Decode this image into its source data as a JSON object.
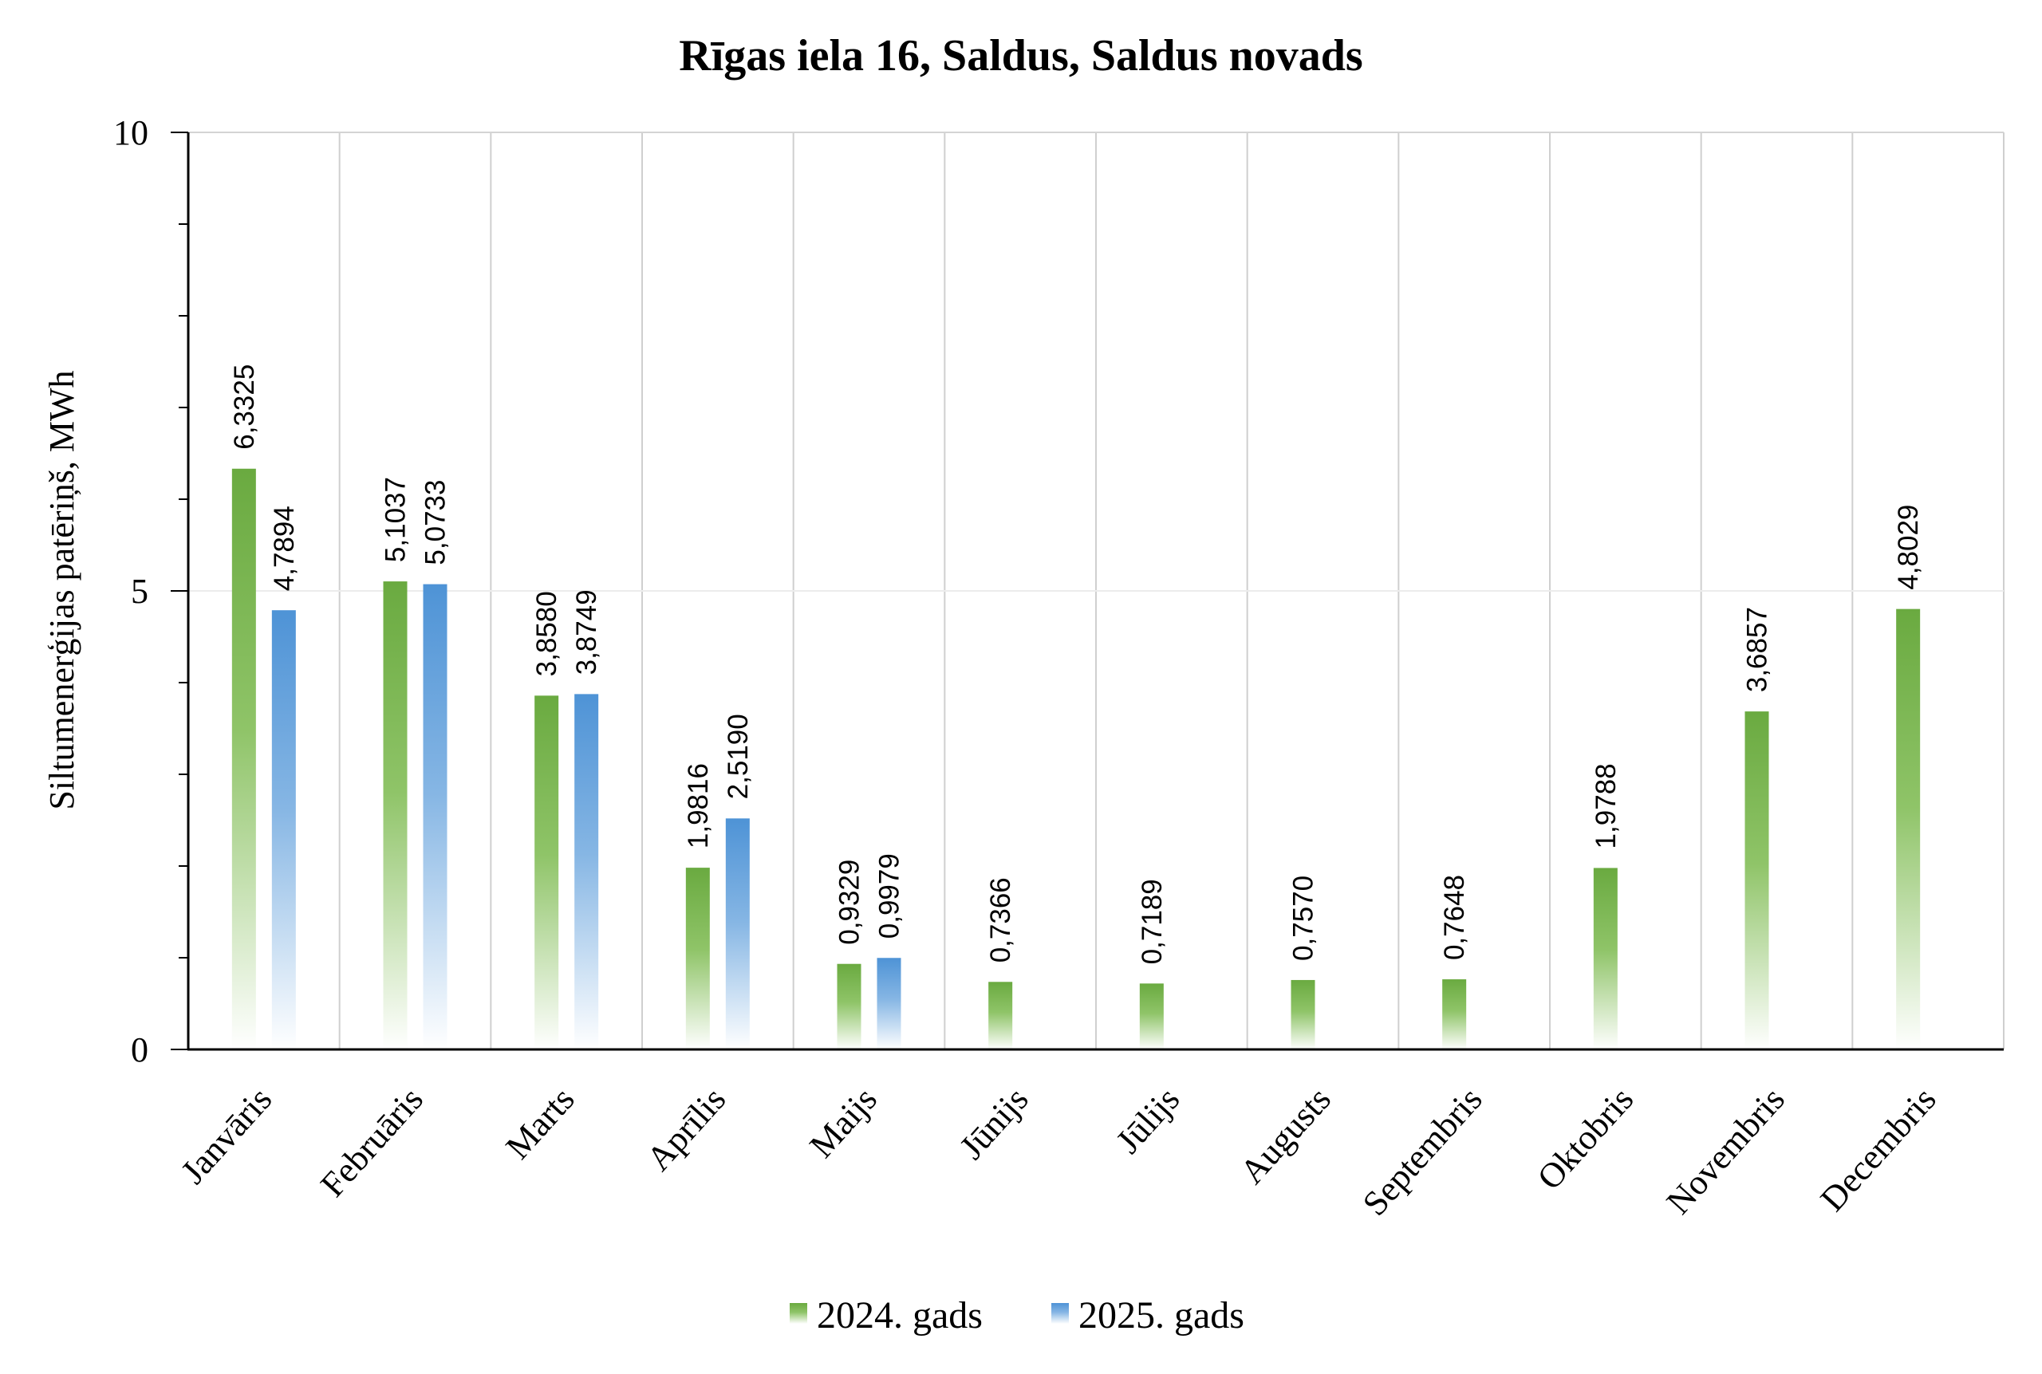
{
  "chart_data": {
    "type": "bar",
    "title": "Rīgas iela 16, Saldus, Saldus novads",
    "ylabel": "Siltumenerģijas patēriņš, MWh",
    "xlabel": "",
    "ylim": [
      0,
      10
    ],
    "yticks": [
      "0",
      "5",
      "10"
    ],
    "categories": [
      "Janvāris",
      "Februāris",
      "Marts",
      "Aprīlis",
      "Maijs",
      "Jūnijs",
      "Jūlijs",
      "Augusts",
      "Septembris",
      "Oktobris",
      "Novembris",
      "Decembris"
    ],
    "series": [
      {
        "name": "2024. gads",
        "color": "#6aaa40",
        "values": [
          6.3325,
          5.1037,
          3.858,
          1.9816,
          0.9329,
          0.7366,
          0.7189,
          0.757,
          0.7648,
          1.9788,
          3.6857,
          4.8029
        ],
        "labels": [
          "6,3325",
          "5,1037",
          "3,8580",
          "1,9816",
          "0,9329",
          "0,7366",
          "0,7189",
          "0,7570",
          "0,7648",
          "1,9788",
          "3,6857",
          "4,8029"
        ]
      },
      {
        "name": "2025. gads",
        "color": "#4e93d6",
        "values": [
          4.7894,
          5.0733,
          3.8749,
          2.519,
          0.9979,
          null,
          null,
          null,
          null,
          null,
          null,
          null
        ],
        "labels": [
          "4,7894",
          "5,0733",
          "3,8749",
          "2,5190",
          "0,9979",
          null,
          null,
          null,
          null,
          null,
          null,
          null
        ]
      }
    ],
    "grid": "vertical gridlines between categories, faint horizontal at 5",
    "legend": "bottom-center"
  }
}
